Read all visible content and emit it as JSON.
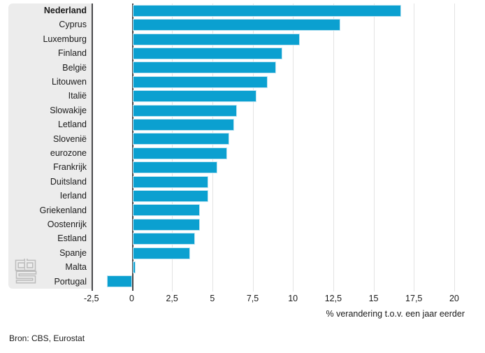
{
  "chart_data": {
    "type": "bar",
    "orientation": "horizontal",
    "title": "",
    "xlabel": "% verandering t.o.v. een jaar eerder",
    "ylabel": "",
    "categories": [
      "Nederland",
      "Cyprus",
      "Luxemburg",
      "Finland",
      "België",
      "Litouwen",
      "Italië",
      "Slowakije",
      "Letland",
      "Slovenië",
      "eurozone",
      "Frankrijk",
      "Duitsland",
      "Ierland",
      "Griekenland",
      "Oostenrijk",
      "Estland",
      "Spanje",
      "Malta",
      "Portugal"
    ],
    "values": [
      16.6,
      12.8,
      10.3,
      9.2,
      8.8,
      8.3,
      7.6,
      6.4,
      6.2,
      5.9,
      5.8,
      5.2,
      4.6,
      4.6,
      4.1,
      4.1,
      3.8,
      3.5,
      0.1,
      -1.5
    ],
    "highlight_category": "Nederland",
    "xlim": [
      -2.5,
      20.5
    ],
    "x_ticks": [
      -2.5,
      0,
      2.5,
      5,
      7.5,
      10,
      12.5,
      15,
      17.5,
      20
    ],
    "x_tick_labels": [
      "-2,5",
      "0",
      "2,5",
      "5",
      "7,5",
      "10",
      "12,5",
      "15",
      "17,5",
      "20"
    ],
    "grid": true,
    "legend": "none",
    "colors": {
      "bar": "#0ba0d0",
      "bar_outline": "#bfe4f2",
      "axis_line": "#48484a",
      "gridline": "#e3e3e3",
      "label_panel_bg": "#ececec",
      "text": "#1a1a1a",
      "logo_gray": "#bdbdbd"
    }
  },
  "footer": {
    "source": "Bron: CBS, Eurostat"
  }
}
